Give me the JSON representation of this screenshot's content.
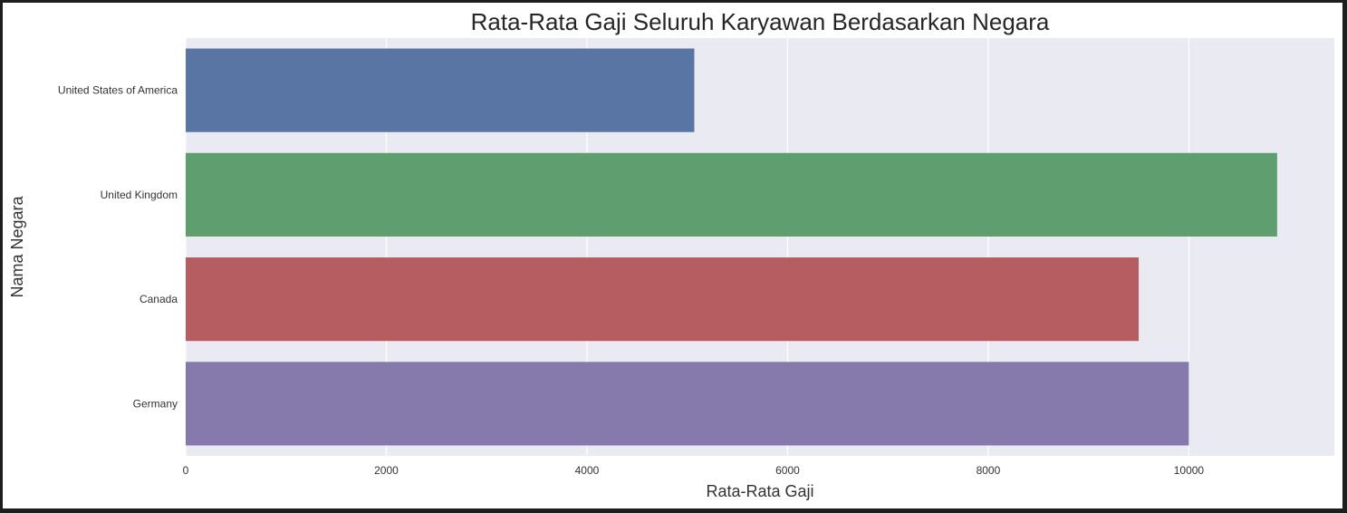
{
  "chart_data": {
    "type": "bar",
    "orientation": "horizontal",
    "title": "Rata-Rata Gaji Seluruh Karyawan Berdasarkan Negara",
    "xlabel": "Rata-Rata Gaji",
    "ylabel": "Nama Negara",
    "categories": [
      "United States of America",
      "United Kingdom",
      "Canada",
      "Germany"
    ],
    "values": [
      5070,
      10880,
      9500,
      10000
    ],
    "xlim": [
      0,
      11450
    ],
    "xticks": [
      0,
      2000,
      4000,
      6000,
      8000,
      10000
    ],
    "xtick_labels": [
      "0",
      "2000",
      "4000",
      "6000",
      "8000",
      "10000"
    ],
    "grid": true,
    "legend": "none",
    "colors": [
      "#5975a4",
      "#5f9e6e",
      "#b55d60",
      "#857aab"
    ],
    "background": "#eaeaf2",
    "grid_color": "#ffffff"
  }
}
